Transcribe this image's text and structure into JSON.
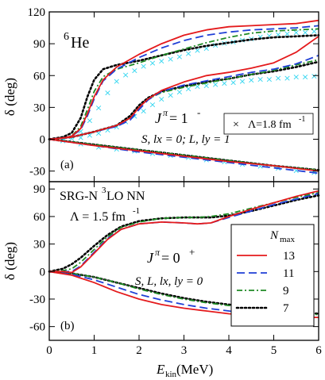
{
  "chart_data": [
    {
      "panel_id": "a",
      "type": "line",
      "panel_label": "(a)",
      "nucleus": {
        "mass": "6",
        "symbol": "He"
      },
      "ylabel": "δ (deg)",
      "xlim": [
        0,
        6
      ],
      "ylim": [
        -40,
        120
      ],
      "xticks": [
        0,
        1,
        2,
        3,
        4,
        5,
        6
      ],
      "yticks": [
        -30,
        0,
        30,
        60,
        90,
        120
      ],
      "annotations": {
        "jpi": "J",
        "jpi_sup": "π",
        "jpi_value": "= 1",
        "jpi_value_sup": "-",
        "quantum_numbers": "S, lx = 0; L, ly = 1",
        "lambda_legend": "Λ=1.8 fm",
        "lambda_legend_sup": "-1"
      },
      "series": [
        {
          "name": "13",
          "color": "#e41a1c",
          "dash": "solid",
          "curves": [
            {
              "x": [
                0,
                0.3,
                0.5,
                0.7,
                0.85,
                1.0,
                1.2,
                1.5,
                2.0,
                2.5,
                3.0,
                3.5,
                4.0,
                4.5,
                5.0,
                5.5,
                6.0
              ],
              "y": [
                0,
                1,
                3,
                10,
                24,
                40,
                56,
                68,
                80,
                90,
                98,
                103,
                106,
                107,
                108,
                109,
                112
              ]
            },
            {
              "x": [
                0,
                0.5,
                1.0,
                1.5,
                1.8,
                2.0,
                2.2,
                2.5,
                3.0,
                3.5,
                4.0,
                4.5,
                5.0,
                5.5,
                6.0
              ],
              "y": [
                0,
                2,
                7,
                13,
                20,
                30,
                38,
                46,
                54,
                60,
                63,
                67,
                72,
                82,
                97
              ]
            },
            {
              "x": [
                0,
                1,
                2,
                3,
                4,
                5,
                6
              ],
              "y": [
                0,
                -6,
                -11,
                -16,
                -21,
                -25,
                -30
              ]
            }
          ]
        },
        {
          "name": "11",
          "color": "#1f3fd6",
          "dash": "long-dash",
          "curves": [
            {
              "x": [
                0,
                0.3,
                0.5,
                0.7,
                0.85,
                1.0,
                1.2,
                1.5,
                2.0,
                2.5,
                3.0,
                3.5,
                4.0,
                4.5,
                5.0,
                5.5,
                6.0
              ],
              "y": [
                0,
                1,
                3,
                9,
                22,
                38,
                55,
                66,
                77,
                86,
                93,
                98,
                101,
                103,
                104,
                105,
                107
              ]
            },
            {
              "x": [
                0,
                0.5,
                1.0,
                1.5,
                1.8,
                2.0,
                2.2,
                2.5,
                3.0,
                3.5,
                4.0,
                4.5,
                5.0,
                5.5,
                6.0
              ],
              "y": [
                0,
                2,
                7,
                12,
                18,
                28,
                37,
                45,
                51,
                55,
                59,
                63,
                66,
                71,
                79
              ]
            },
            {
              "x": [
                0,
                1,
                2,
                3,
                4,
                5,
                6
              ],
              "y": [
                0,
                -6,
                -12,
                -17,
                -22,
                -27,
                -32
              ]
            }
          ]
        },
        {
          "name": "9",
          "color": "#1e8a24",
          "dash": "dash-dot",
          "curves": [
            {
              "x": [
                0,
                0.3,
                0.5,
                0.7,
                0.85,
                1.0,
                1.2,
                1.5,
                2.0,
                2.5,
                3.0,
                3.5,
                4.0,
                4.5,
                5.0,
                5.5,
                6.0
              ],
              "y": [
                0,
                1,
                3,
                12,
                28,
                45,
                59,
                66,
                72,
                79,
                85,
                91,
                96,
                100,
                102,
                103,
                104
              ]
            },
            {
              "x": [
                0,
                0.5,
                1.0,
                1.5,
                1.8,
                2.0,
                2.2,
                2.5,
                3.0,
                3.5,
                4.0,
                4.5,
                5.0,
                5.5,
                6.0
              ],
              "y": [
                0,
                2,
                7,
                13,
                20,
                30,
                38,
                44,
                49,
                53,
                57,
                61,
                65,
                70,
                75
              ]
            },
            {
              "x": [
                0,
                1,
                2,
                3,
                4,
                5,
                6
              ],
              "y": [
                0,
                -5,
                -10,
                -15,
                -20,
                -25,
                -29
              ]
            }
          ]
        },
        {
          "name": "7",
          "color": "#000000",
          "dash": "dotted",
          "curves": [
            {
              "x": [
                0,
                0.3,
                0.5,
                0.7,
                0.85,
                1.0,
                1.2,
                1.5,
                2.0,
                2.5,
                3.0,
                3.5,
                4.0,
                4.5,
                5.0,
                5.5,
                6.0
              ],
              "y": [
                0,
                2,
                6,
                20,
                40,
                56,
                66,
                70,
                74,
                79,
                84,
                88,
                91,
                94,
                96,
                97,
                98
              ]
            },
            {
              "x": [
                0,
                0.5,
                1.0,
                1.5,
                1.8,
                2.0,
                2.2,
                2.5,
                3.0,
                3.5,
                4.0,
                4.5,
                5.0,
                5.5,
                6.0
              ],
              "y": [
                0,
                2,
                7,
                13,
                22,
                32,
                39,
                45,
                50,
                54,
                57,
                61,
                64,
                68,
                73
              ]
            },
            {
              "x": [
                0,
                1,
                2,
                3,
                4,
                5,
                6
              ],
              "y": [
                0,
                -5,
                -10,
                -15,
                -20,
                -25,
                -29
              ]
            }
          ]
        },
        {
          "name": "Λ=1.8 fm-1",
          "color": "#33d6f0",
          "marker": "x",
          "curves": [
            {
              "x": [
                0.3,
                0.5,
                0.7,
                0.9,
                1.1,
                1.3,
                1.5,
                1.7,
                1.9,
                2.1,
                2.3,
                2.5,
                2.7,
                2.9,
                3.1,
                3.3,
                3.5,
                3.7,
                3.9,
                4.1,
                4.3,
                4.5,
                4.7,
                4.9,
                5.1,
                5.3,
                5.5,
                5.7,
                5.9
              ],
              "y": [
                1,
                3,
                8,
                18,
                30,
                44,
                55,
                61,
                65,
                69,
                72,
                74,
                76,
                78,
                81,
                84,
                86,
                89,
                91,
                92,
                94,
                95,
                97,
                98,
                99,
                100,
                101,
                101,
                102
              ]
            },
            {
              "x": [
                0.3,
                0.5,
                0.7,
                0.9,
                1.1,
                1.3,
                1.5,
                1.7,
                1.9,
                2.1,
                2.3,
                2.5,
                2.7,
                2.9,
                3.1,
                3.3,
                3.5,
                3.7,
                3.9,
                4.1,
                4.3,
                4.5,
                4.7,
                4.9,
                5.1,
                5.3,
                5.5,
                5.7,
                5.9
              ],
              "y": [
                0,
                1,
                2,
                4,
                6,
                9,
                12,
                17,
                22,
                27,
                33,
                38,
                42,
                45,
                48,
                50,
                51,
                52,
                53,
                54,
                55,
                56,
                57,
                57,
                58,
                58,
                59,
                59,
                60
              ]
            },
            {
              "x": [
                0.3,
                0.7,
                1.1,
                1.5,
                1.9,
                2.3,
                2.7,
                3.1,
                3.5,
                3.9,
                4.3,
                4.7,
                5.1,
                5.5,
                5.9
              ],
              "y": [
                -1,
                -4,
                -7,
                -9,
                -11,
                -13,
                -15,
                -17,
                -19,
                -21,
                -23,
                -25,
                -27,
                -29,
                -31
              ]
            }
          ]
        }
      ]
    },
    {
      "panel_id": "b",
      "type": "line",
      "panel_label": "(b)",
      "title": "SRG-N",
      "title_sup": "3",
      "title_rest": "LO NN",
      "lambda": "Λ = 1.5 fm",
      "lambda_sup": "-1",
      "xlabel": "E",
      "xlabel_sub": "kin",
      "xlabel_unit": " (MeV)",
      "ylabel": "δ (deg)",
      "xlim": [
        0,
        6
      ],
      "ylim": [
        -75,
        98
      ],
      "xticks": [
        0,
        1,
        2,
        3,
        4,
        5,
        6
      ],
      "yticks": [
        -60,
        -30,
        0,
        30,
        60,
        90
      ],
      "annotations": {
        "jpi": "J",
        "jpi_sup": "π",
        "jpi_value": " = 0",
        "jpi_value_sup": "+",
        "quantum_numbers": "S, L, lx, ly = 0"
      },
      "legend": {
        "title": "N",
        "title_sub": "max",
        "position": "center-right"
      },
      "series": [
        {
          "name": "13",
          "color": "#e41a1c",
          "dash": "solid",
          "curves": [
            {
              "x": [
                0,
                0.3,
                0.5,
                0.7,
                1.0,
                1.3,
                1.6,
                2.0,
                2.5,
                3.0,
                3.3,
                3.6,
                4.0,
                4.5,
                5.0,
                5.5,
                6.0
              ],
              "y": [
                0,
                0,
                -1,
                5,
                20,
                35,
                46,
                52,
                54,
                53,
                52,
                53,
                60,
                68,
                75,
                82,
                88
              ]
            },
            {
              "x": [
                0,
                0.5,
                1.0,
                1.5,
                2.0,
                2.5,
                3.0,
                3.5,
                4.0,
                4.5,
                5.0,
                5.5,
                6.0
              ],
              "y": [
                0,
                -4,
                -12,
                -22,
                -30,
                -36,
                -40,
                -43,
                -46,
                -48,
                -49,
                -50,
                -50
              ]
            }
          ]
        },
        {
          "name": "11",
          "color": "#1f3fd6",
          "dash": "long-dash",
          "curves": [
            {
              "x": [
                0,
                0.3,
                0.5,
                0.7,
                1.0,
                1.3,
                1.6,
                2.0,
                2.5,
                3.0,
                3.3,
                3.6,
                4.0,
                4.5,
                5.0,
                5.5,
                6.0
              ],
              "y": [
                0,
                0,
                0,
                6,
                21,
                36,
                46,
                52,
                54,
                53,
                52,
                53,
                59,
                66,
                73,
                79,
                85
              ]
            },
            {
              "x": [
                0,
                0.5,
                1.0,
                1.5,
                2.0,
                2.5,
                3.0,
                3.5,
                4.0,
                4.5,
                5.0,
                5.5,
                6.0
              ],
              "y": [
                0,
                -3,
                -9,
                -17,
                -25,
                -31,
                -36,
                -40,
                -43,
                -46,
                -48,
                -50,
                -52
              ]
            }
          ]
        },
        {
          "name": "9",
          "color": "#1e8a24",
          "dash": "dash-dot",
          "curves": [
            {
              "x": [
                0,
                0.3,
                0.5,
                0.7,
                1.0,
                1.3,
                1.6,
                2.0,
                2.5,
                3.0,
                3.3,
                3.6,
                4.0,
                4.5,
                5.0,
                5.5,
                6.0
              ],
              "y": [
                0,
                1,
                3,
                10,
                24,
                38,
                48,
                54,
                58,
                59,
                59,
                60,
                63,
                69,
                75,
                81,
                86
              ]
            },
            {
              "x": [
                0,
                0.5,
                1.0,
                1.5,
                2.0,
                2.5,
                3.0,
                3.5,
                4.0,
                4.5,
                5.0,
                5.5,
                6.0
              ],
              "y": [
                0,
                -2,
                -6,
                -12,
                -19,
                -25,
                -30,
                -34,
                -37,
                -40,
                -43,
                -45,
                -47
              ]
            }
          ]
        },
        {
          "name": "7",
          "color": "#000000",
          "dash": "dotted",
          "curves": [
            {
              "x": [
                0,
                0.3,
                0.5,
                0.7,
                1.0,
                1.3,
                1.6,
                2.0,
                2.5,
                3.0,
                3.3,
                3.6,
                4.0,
                4.5,
                5.0,
                5.5,
                6.0
              ],
              "y": [
                0,
                3,
                8,
                15,
                28,
                40,
                49,
                55,
                58,
                59,
                59,
                59,
                61,
                66,
                72,
                78,
                83
              ]
            },
            {
              "x": [
                0,
                0.5,
                1.0,
                1.5,
                2.0,
                2.5,
                3.0,
                3.5,
                4.0,
                4.5,
                5.0,
                5.5,
                6.0
              ],
              "y": [
                0,
                -2,
                -6,
                -12,
                -18,
                -24,
                -29,
                -33,
                -36,
                -39,
                -42,
                -44,
                -46
              ]
            }
          ]
        }
      ]
    }
  ]
}
